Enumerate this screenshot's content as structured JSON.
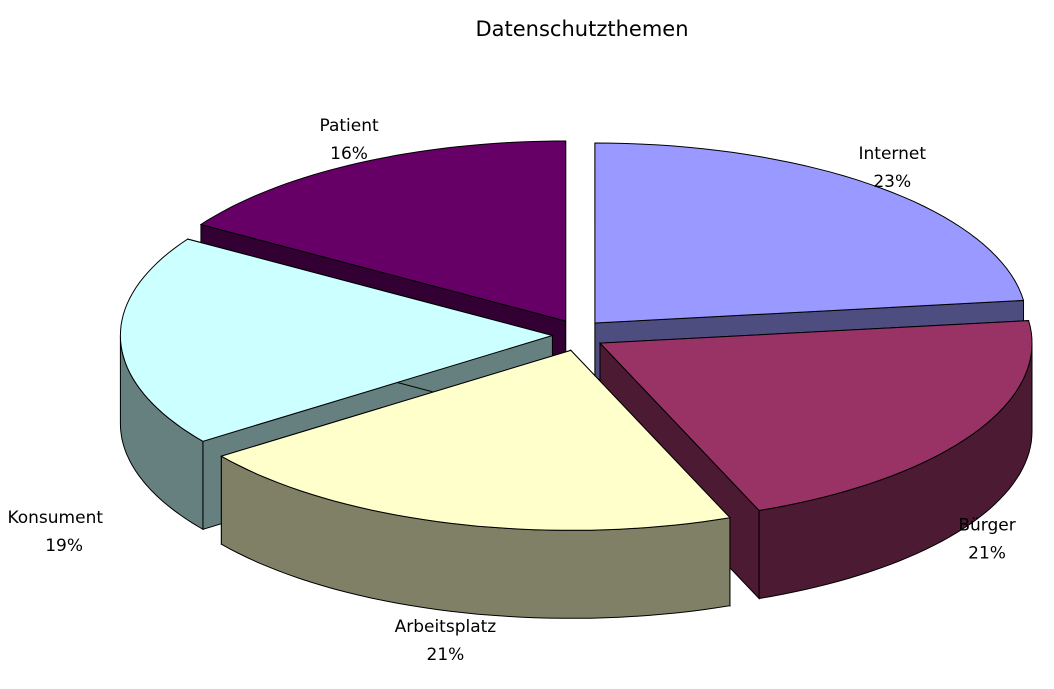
{
  "chart_data": {
    "type": "pie",
    "title": "Datenschutzthemen",
    "categories": [
      "Internet",
      "Bürger",
      "Arbeitsplatz",
      "Konsument",
      "Patient"
    ],
    "values": [
      23,
      21,
      21,
      19,
      16
    ],
    "value_labels": [
      "23%",
      "21%",
      "21%",
      "19%",
      "16%"
    ],
    "colors": [
      "#9999ff",
      "#993366",
      "#ffffcc",
      "#ccffff",
      "#660066"
    ]
  }
}
